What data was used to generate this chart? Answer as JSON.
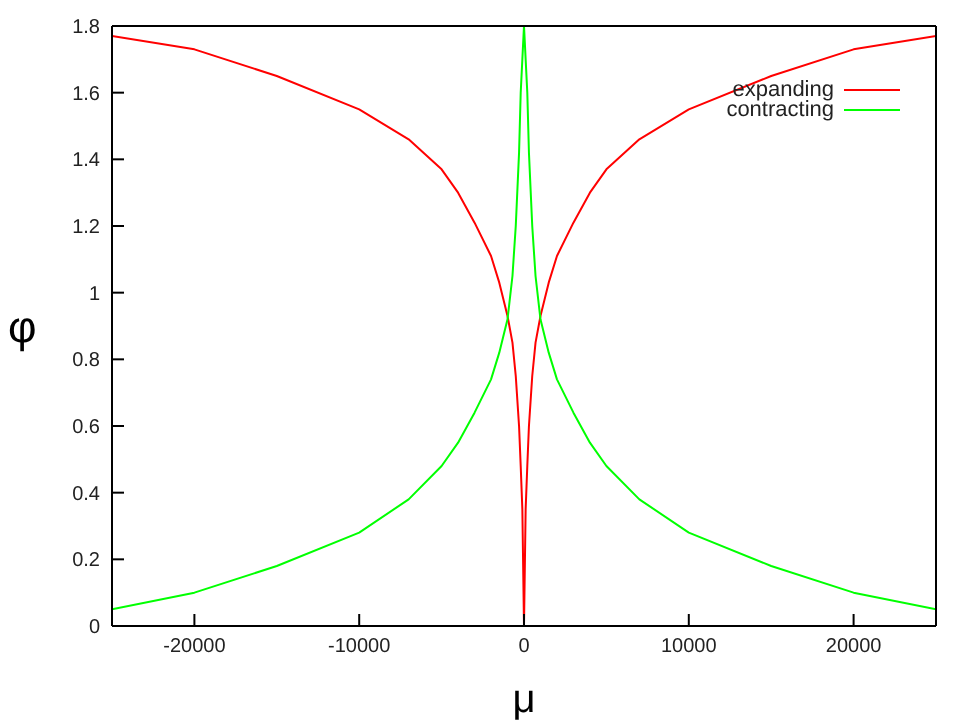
{
  "chart_data": {
    "type": "line",
    "xlabel": "μ",
    "ylabel": "φ",
    "x": [
      -25000,
      -20000,
      -15000,
      -10000,
      -7000,
      -5000,
      -4000,
      -3000,
      -2000,
      -1500,
      -1000,
      -700,
      -500,
      -300,
      -200,
      -100,
      0,
      100,
      200,
      300,
      500,
      700,
      1000,
      1500,
      2000,
      3000,
      4000,
      5000,
      7000,
      10000,
      15000,
      20000,
      25000
    ],
    "series": [
      {
        "name": "expanding",
        "color": "#ff0000",
        "values": [
          1.77,
          1.73,
          1.65,
          1.55,
          1.46,
          1.37,
          1.3,
          1.21,
          1.11,
          1.03,
          0.93,
          0.85,
          0.75,
          0.6,
          0.48,
          0.35,
          0,
          0.35,
          0.48,
          0.6,
          0.75,
          0.85,
          0.93,
          1.03,
          1.11,
          1.21,
          1.3,
          1.37,
          1.46,
          1.55,
          1.65,
          1.73,
          1.77
        ]
      },
      {
        "name": "contracting",
        "color": "#00ff00",
        "values": [
          0.05,
          0.1,
          0.18,
          0.28,
          0.38,
          0.48,
          0.55,
          0.64,
          0.74,
          0.82,
          0.92,
          1.05,
          1.2,
          1.42,
          1.6,
          1.7,
          1.8,
          1.7,
          1.6,
          1.42,
          1.2,
          1.05,
          0.92,
          0.82,
          0.74,
          0.64,
          0.55,
          0.48,
          0.38,
          0.28,
          0.18,
          0.1,
          0.05
        ]
      }
    ],
    "xlim": [
      -25000,
      25000
    ],
    "xticks": [
      -20000,
      -10000,
      0,
      10000,
      20000
    ],
    "ylim": [
      0,
      1.8
    ],
    "yticks": [
      0,
      0.2,
      0.4,
      0.6,
      0.8,
      1,
      1.2,
      1.4,
      1.6,
      1.8
    ],
    "legend": "top right",
    "grid": false,
    "marker": "none",
    "line_style": "solid"
  }
}
